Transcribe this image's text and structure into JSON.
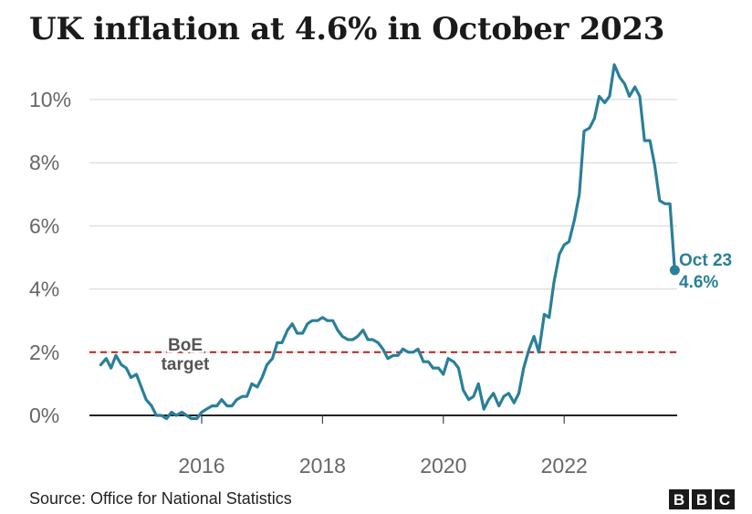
{
  "header": {
    "title": "UK inflation at 4.6% in October 2023"
  },
  "footer": {
    "source": "Source: Office for National Statistics",
    "logo_letters": [
      "B",
      "B",
      "C"
    ]
  },
  "chart_data": {
    "type": "line",
    "title": "UK inflation at 4.6% in October 2023",
    "xlabel": "",
    "ylabel": "",
    "ylim": [
      0,
      11
    ],
    "xlim": [
      2014.25,
      2023.9
    ],
    "y_ticks": [
      0,
      2,
      4,
      6,
      8,
      10
    ],
    "y_tick_labels": [
      "0%",
      "2%",
      "4%",
      "6%",
      "8%",
      "10%"
    ],
    "x_ticks": [
      2016,
      2018,
      2020,
      2022
    ],
    "x_tick_labels": [
      "2016",
      "2018",
      "2020",
      "2022"
    ],
    "grid": "horizontal",
    "reference_line": {
      "value": 2,
      "label_lines": [
        "BoE",
        "target"
      ],
      "color": "#b22222",
      "style": "dashed"
    },
    "end_annotation": {
      "label_lines": [
        "Oct 23",
        "4.6%"
      ]
    },
    "series": [
      {
        "color": "#2a7f9a",
        "points": [
          [
            2014.33,
            1.6
          ],
          [
            2014.42,
            1.8
          ],
          [
            2014.5,
            1.5
          ],
          [
            2014.58,
            1.9
          ],
          [
            2014.67,
            1.6
          ],
          [
            2014.75,
            1.5
          ],
          [
            2014.83,
            1.2
          ],
          [
            2014.92,
            1.3
          ],
          [
            2015.0,
            0.9
          ],
          [
            2015.08,
            0.5
          ],
          [
            2015.17,
            0.3
          ],
          [
            2015.25,
            0.0
          ],
          [
            2015.33,
            0.0
          ],
          [
            2015.42,
            -0.1
          ],
          [
            2015.5,
            0.1
          ],
          [
            2015.58,
            0.0
          ],
          [
            2015.67,
            0.1
          ],
          [
            2015.75,
            0.0
          ],
          [
            2015.83,
            -0.1
          ],
          [
            2015.92,
            -0.1
          ],
          [
            2016.0,
            0.1
          ],
          [
            2016.08,
            0.2
          ],
          [
            2016.17,
            0.3
          ],
          [
            2016.25,
            0.3
          ],
          [
            2016.33,
            0.5
          ],
          [
            2016.42,
            0.3
          ],
          [
            2016.5,
            0.3
          ],
          [
            2016.58,
            0.5
          ],
          [
            2016.67,
            0.6
          ],
          [
            2016.75,
            0.6
          ],
          [
            2016.83,
            1.0
          ],
          [
            2016.92,
            0.9
          ],
          [
            2017.0,
            1.2
          ],
          [
            2017.08,
            1.6
          ],
          [
            2017.17,
            1.8
          ],
          [
            2017.25,
            2.3
          ],
          [
            2017.33,
            2.3
          ],
          [
            2017.42,
            2.7
          ],
          [
            2017.5,
            2.9
          ],
          [
            2017.58,
            2.6
          ],
          [
            2017.67,
            2.6
          ],
          [
            2017.75,
            2.9
          ],
          [
            2017.83,
            3.0
          ],
          [
            2017.92,
            3.0
          ],
          [
            2018.0,
            3.1
          ],
          [
            2018.08,
            3.0
          ],
          [
            2018.17,
            3.0
          ],
          [
            2018.25,
            2.7
          ],
          [
            2018.33,
            2.5
          ],
          [
            2018.42,
            2.4
          ],
          [
            2018.5,
            2.4
          ],
          [
            2018.58,
            2.5
          ],
          [
            2018.67,
            2.7
          ],
          [
            2018.75,
            2.4
          ],
          [
            2018.83,
            2.4
          ],
          [
            2018.92,
            2.3
          ],
          [
            2019.0,
            2.1
          ],
          [
            2019.08,
            1.8
          ],
          [
            2019.17,
            1.9
          ],
          [
            2019.25,
            1.9
          ],
          [
            2019.33,
            2.1
          ],
          [
            2019.42,
            2.0
          ],
          [
            2019.5,
            2.0
          ],
          [
            2019.58,
            2.1
          ],
          [
            2019.67,
            1.7
          ],
          [
            2019.75,
            1.7
          ],
          [
            2019.83,
            1.5
          ],
          [
            2019.92,
            1.5
          ],
          [
            2020.0,
            1.3
          ],
          [
            2020.08,
            1.8
          ],
          [
            2020.17,
            1.7
          ],
          [
            2020.25,
            1.5
          ],
          [
            2020.33,
            0.8
          ],
          [
            2020.42,
            0.5
          ],
          [
            2020.5,
            0.6
          ],
          [
            2020.58,
            1.0
          ],
          [
            2020.67,
            0.2
          ],
          [
            2020.75,
            0.5
          ],
          [
            2020.83,
            0.7
          ],
          [
            2020.92,
            0.3
          ],
          [
            2021.0,
            0.6
          ],
          [
            2021.08,
            0.7
          ],
          [
            2021.17,
            0.4
          ],
          [
            2021.25,
            0.7
          ],
          [
            2021.33,
            1.5
          ],
          [
            2021.42,
            2.1
          ],
          [
            2021.5,
            2.5
          ],
          [
            2021.58,
            2.0
          ],
          [
            2021.67,
            3.2
          ],
          [
            2021.75,
            3.1
          ],
          [
            2021.83,
            4.2
          ],
          [
            2021.92,
            5.1
          ],
          [
            2022.0,
            5.4
          ],
          [
            2022.08,
            5.5
          ],
          [
            2022.17,
            6.2
          ],
          [
            2022.25,
            7.0
          ],
          [
            2022.33,
            9.0
          ],
          [
            2022.42,
            9.1
          ],
          [
            2022.5,
            9.4
          ],
          [
            2022.58,
            10.1
          ],
          [
            2022.67,
            9.9
          ],
          [
            2022.75,
            10.1
          ],
          [
            2022.83,
            11.1
          ],
          [
            2022.92,
            10.7
          ],
          [
            2023.0,
            10.5
          ],
          [
            2023.08,
            10.1
          ],
          [
            2023.17,
            10.4
          ],
          [
            2023.25,
            10.1
          ],
          [
            2023.33,
            8.7
          ],
          [
            2023.42,
            8.7
          ],
          [
            2023.5,
            7.9
          ],
          [
            2023.58,
            6.8
          ],
          [
            2023.67,
            6.7
          ],
          [
            2023.75,
            6.7
          ],
          [
            2023.83,
            4.6
          ]
        ]
      }
    ]
  }
}
